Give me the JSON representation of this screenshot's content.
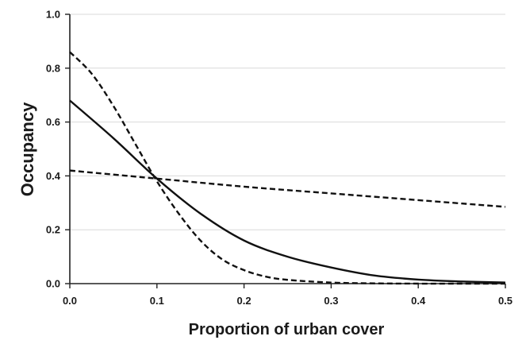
{
  "chart_data": {
    "type": "line",
    "title": "",
    "xlabel": "Proportion of urban cover",
    "ylabel": "Occupancy",
    "xlim": [
      0,
      0.5
    ],
    "ylim": [
      0,
      1.0
    ],
    "x_ticks": [
      "0.0",
      "0.1",
      "0.2",
      "0.3",
      "0.4",
      "0.5"
    ],
    "y_ticks": [
      "0.0",
      "0.2",
      "0.4",
      "0.6",
      "0.8",
      "1.0"
    ],
    "grid": "horizontal",
    "legend": "none",
    "series": [
      {
        "style": "solid",
        "color": "#111111",
        "x": [
          0.0,
          0.05,
          0.1,
          0.15,
          0.2,
          0.25,
          0.3,
          0.35,
          0.4,
          0.45,
          0.5
        ],
        "y": [
          0.68,
          0.54,
          0.39,
          0.26,
          0.16,
          0.1,
          0.06,
          0.03,
          0.015,
          0.008,
          0.004
        ]
      },
      {
        "style": "dashed",
        "color": "#111111",
        "x": [
          0.0,
          0.025,
          0.05,
          0.075,
          0.1,
          0.125,
          0.15,
          0.175,
          0.2,
          0.225,
          0.25,
          0.3,
          0.35,
          0.4,
          0.45,
          0.5
        ],
        "y": [
          0.86,
          0.78,
          0.66,
          0.52,
          0.38,
          0.26,
          0.16,
          0.09,
          0.05,
          0.026,
          0.014,
          0.004,
          0.001,
          0.0,
          0.0,
          0.0
        ]
      },
      {
        "style": "dashed",
        "color": "#111111",
        "x": [
          0.0,
          0.1,
          0.2,
          0.3,
          0.4,
          0.5
        ],
        "y": [
          0.42,
          0.39,
          0.36,
          0.335,
          0.31,
          0.285
        ]
      }
    ]
  }
}
